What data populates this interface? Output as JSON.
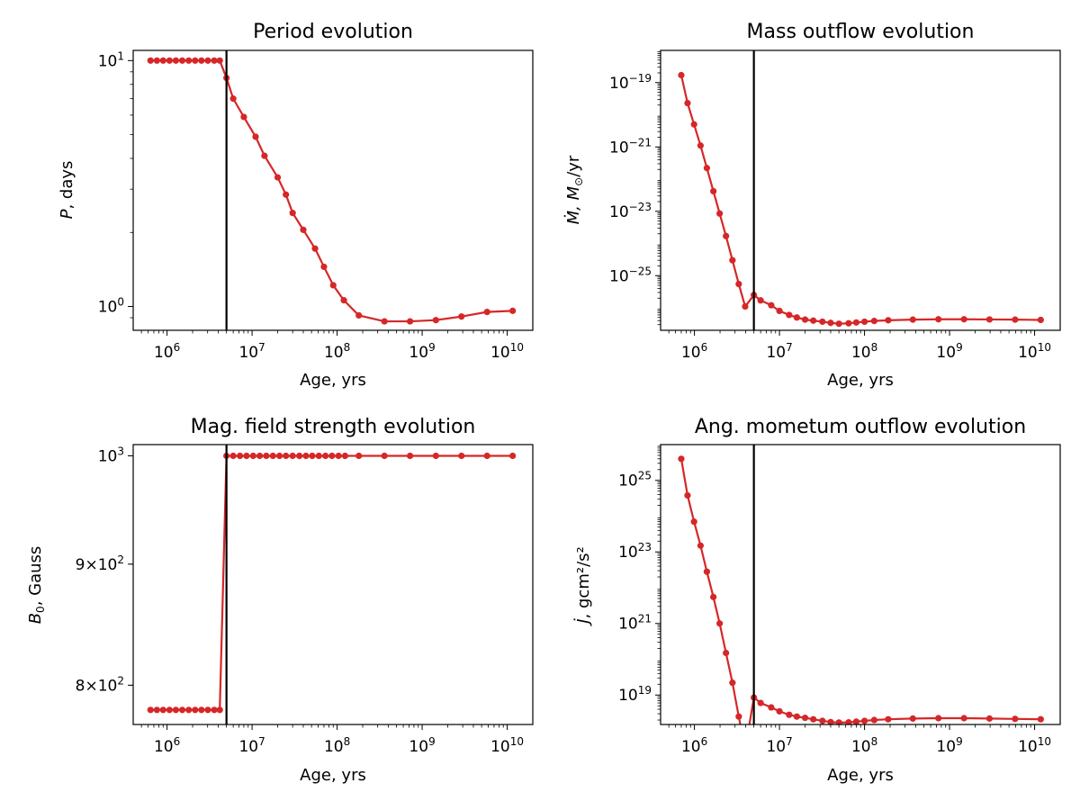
{
  "line_color": "#d62728",
  "marker_color": "#d62728",
  "chart_data": [
    {
      "type": "line",
      "title": "Period evolution",
      "xlabel": "Age, yrs",
      "ylabel_main": "P",
      "ylabel_rest": ", days",
      "xscale": "log",
      "yscale": "log",
      "xlim": [
        400000,
        20000000000
      ],
      "ylim": [
        0.8,
        11
      ],
      "vline_x": 5000000,
      "xticks": [
        {
          "e": "6"
        },
        {
          "e": "7"
        },
        {
          "e": "8"
        },
        {
          "e": "9"
        },
        {
          "e": "10"
        }
      ],
      "yticks": [
        {
          "v": 1,
          "text": "10",
          "sup": "0"
        },
        {
          "v": 10,
          "text": "10",
          "sup": "1"
        }
      ],
      "series": [
        {
          "x": [
            640000,
            760000,
            900000,
            1070000,
            1270000,
            1510000,
            1800000,
            2140000,
            2540000,
            3020000,
            3590000,
            4170000,
            5000000,
            6000000,
            8000000,
            11000000.0,
            14000000.0,
            20000000.0,
            25000000.0,
            30000000.0,
            40000000.0,
            55000000.0,
            70000000.0,
            90000000.0,
            120000000.0,
            180000000.0,
            360000000.0,
            720000000.0,
            1450000000.0,
            2900000000.0,
            5800000000.0,
            11600000000.0
          ],
          "y": [
            10,
            10,
            10,
            10,
            10,
            10,
            10,
            10,
            10,
            10,
            10,
            10,
            8.5,
            7.0,
            5.9,
            4.9,
            4.1,
            3.35,
            2.85,
            2.4,
            2.05,
            1.72,
            1.45,
            1.22,
            1.06,
            0.92,
            0.87,
            0.87,
            0.88,
            0.91,
            0.95,
            0.96
          ]
        }
      ]
    },
    {
      "type": "line",
      "title": "Mass outflow evolution",
      "xlabel": "Age, yrs",
      "ylabel_main": "Ṁ, M",
      "ylabel_sub": "⊙",
      "ylabel_rest": "/yr",
      "xscale": "log",
      "yscale": "log",
      "xlim": [
        400000,
        20000000000
      ],
      "ylim": [
        2e-27,
        1e-18
      ],
      "vline_x": 5000000,
      "xticks": [
        {
          "e": "6"
        },
        {
          "e": "7"
        },
        {
          "e": "8"
        },
        {
          "e": "9"
        },
        {
          "e": "10"
        }
      ],
      "yticks": [
        {
          "v": 1e-19,
          "text": "10",
          "sup": "−19"
        },
        {
          "v": 1e-21,
          "text": "10",
          "sup": "−21"
        },
        {
          "v": 1e-23,
          "text": "10",
          "sup": "−23"
        },
        {
          "v": 1e-25,
          "text": "10",
          "sup": "−25"
        }
      ],
      "series": [
        {
          "x": [
            700000,
            830000,
            990000,
            1180000,
            1400000,
            1670000,
            1980000,
            2350000,
            2800000,
            3320000,
            3950000,
            5000000,
            6000000,
            8000000,
            10000000.0,
            13000000.0,
            16000000.0,
            20000000.0,
            25000000.0,
            32000000.0,
            40000000.0,
            50000000.0,
            65000000.0,
            80000000.0,
            100000000.0,
            130000000.0,
            190000000.0,
            370000000.0,
            740000000.0,
            1480000000.0,
            2950000000.0,
            5900000000.0,
            11800000000.0
          ],
          "y": [
            1.7e-19,
            2.3e-20,
            5e-21,
            1.1e-21,
            2.2e-22,
            4.2e-23,
            8.5e-24,
            1.7e-24,
            3e-25,
            5.5e-26,
            1.1e-26,
            2.5e-26,
            1.7e-26,
            1.2e-26,
            8e-27,
            6e-27,
            5e-27,
            4.3e-27,
            4e-27,
            3.7e-27,
            3.4e-27,
            3.2e-27,
            3.3e-27,
            3.5e-27,
            3.7e-27,
            3.9e-27,
            4.1e-27,
            4.3e-27,
            4.4e-27,
            4.4e-27,
            4.35e-27,
            4.3e-27,
            4.2e-27
          ]
        }
      ]
    },
    {
      "type": "line",
      "title": "Mag. field strength evolution",
      "xlabel": "Age, yrs",
      "ylabel_main": "B",
      "ylabel_sub": "0",
      "ylabel_rest": ", Gauss",
      "xscale": "log",
      "yscale": "log",
      "xlim": [
        400000,
        20000000000
      ],
      "ylim": [
        770,
        1011
      ],
      "vline_x": 5000000,
      "xticks": [
        {
          "e": "6"
        },
        {
          "e": "7"
        },
        {
          "e": "8"
        },
        {
          "e": "9"
        },
        {
          "e": "10"
        }
      ],
      "yticks": [
        {
          "v": 800,
          "text": "8×10",
          "sup": "2"
        },
        {
          "v": 900,
          "text": "9×10",
          "sup": "2"
        },
        {
          "v": 1000,
          "text": "10",
          "sup": "3"
        }
      ],
      "series": [
        {
          "x": [
            640000,
            760000,
            900000,
            1070000,
            1270000,
            1510000,
            1800000,
            2140000,
            2540000,
            3020000,
            3590000,
            4170000,
            5000000,
            6000000,
            7200000,
            8600000,
            10300000.0,
            12300000.0,
            14700000.0,
            17600000.0,
            21000000.0,
            25000000.0,
            30000000.0,
            36000000.0,
            43000000.0,
            51000000.0,
            61000000.0,
            73000000.0,
            87000000.0,
            104000000.0,
            124000000.0,
            180000000.0,
            360000000.0,
            720000000.0,
            1450000000.0,
            2900000000.0,
            5800000000.0,
            11600000000.0
          ],
          "y": [
            781,
            781,
            781,
            781,
            781,
            781,
            781,
            781,
            781,
            781,
            781,
            781,
            1000,
            1000,
            1000,
            1000,
            1000,
            1000,
            1000,
            1000,
            1000,
            1000,
            1000,
            1000,
            1000,
            1000,
            1000,
            1000,
            1000,
            1000,
            1000,
            1000,
            1000,
            1000,
            1000,
            1000,
            1000,
            1000
          ]
        }
      ]
    },
    {
      "type": "line",
      "title": "Ang. mometum outflow evolution",
      "xlabel": "Age, yrs",
      "ylabel_main": "J̇",
      "ylabel_rest": ", gcm²/s²",
      "xscale": "log",
      "yscale": "log",
      "xlim": [
        400000,
        20000000000
      ],
      "ylim": [
        1.5e+18,
        1e+26
      ],
      "vline_x": 5000000,
      "xticks": [
        {
          "e": "6"
        },
        {
          "e": "7"
        },
        {
          "e": "8"
        },
        {
          "e": "9"
        },
        {
          "e": "10"
        }
      ],
      "yticks": [
        {
          "v": 1e+19,
          "text": "10",
          "sup": "19"
        },
        {
          "v": 1e+21,
          "text": "10",
          "sup": "21"
        },
        {
          "v": 1e+23,
          "text": "10",
          "sup": "23"
        },
        {
          "v": 1e+25,
          "text": "10",
          "sup": "25"
        }
      ],
      "series": [
        {
          "x": [
            700000,
            830000,
            990000,
            1180000,
            1400000,
            1670000,
            1980000,
            2350000,
            2800000,
            3320000,
            3950000,
            5000000,
            6000000,
            8000000,
            10000000.0,
            13000000.0,
            16000000.0,
            20000000.0,
            25000000.0,
            32000000.0,
            40000000.0,
            50000000.0,
            65000000.0,
            80000000.0,
            100000000.0,
            130000000.0,
            190000000.0,
            370000000.0,
            740000000.0,
            1480000000.0,
            2950000000.0,
            5900000000.0,
            11800000000.0
          ],
          "y": [
            4e+25,
            3.8e+24,
            7e+23,
            1.5e+23,
            2.8e+22,
            5.5e+21,
            1e+21,
            1.5e+20,
            2.2e+19,
            2.5e+18,
            3e+17,
            8.5e+18,
            6e+18,
            4.5e+18,
            3.5e+18,
            2.8e+18,
            2.5e+18,
            2.3e+18,
            2.1e+18,
            1.9e+18,
            1.75e+18,
            1.7e+18,
            1.72e+18,
            1.8e+18,
            1.9e+18,
            2e+18,
            2.1e+18,
            2.2e+18,
            2.25e+18,
            2.25e+18,
            2.2e+18,
            2.15e+18,
            2.1e+18
          ]
        }
      ]
    }
  ]
}
